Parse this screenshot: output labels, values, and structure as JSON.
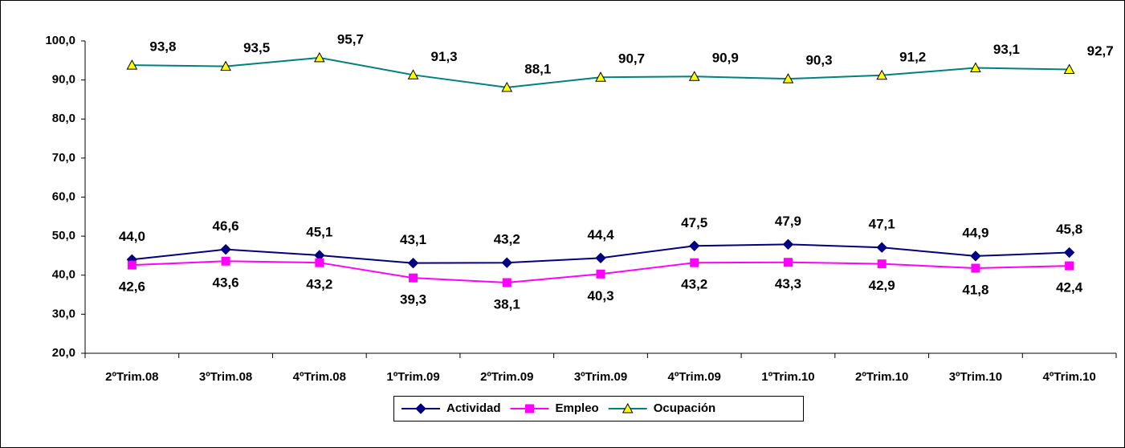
{
  "chart_data": {
    "type": "line",
    "categories": [
      "2ºTrim.08",
      "3ºTrim.08",
      "4ºTrim.08",
      "1ºTrim.09",
      "2ºTrim.09",
      "3ºTrim.09",
      "4ºTrim.09",
      "1ºTrim.10",
      "2ºTrim.10",
      "3ºTrim.10",
      "4ºTrim.10"
    ],
    "series": [
      {
        "name": "Actividad",
        "color": "#000080",
        "marker": "diamond",
        "values": [
          44.0,
          46.6,
          45.1,
          43.1,
          43.2,
          44.4,
          47.5,
          47.9,
          47.1,
          44.9,
          45.8
        ],
        "value_labels": [
          "44,0",
          "46,6",
          "45,1",
          "43,1",
          "43,2",
          "44,4",
          "47,5",
          "47,9",
          "47,1",
          "44,9",
          "45,8"
        ]
      },
      {
        "name": "Empleo",
        "color": "#ff00ff",
        "marker": "square",
        "values": [
          42.6,
          43.6,
          43.2,
          39.3,
          38.1,
          40.3,
          43.2,
          43.3,
          42.9,
          41.8,
          42.4
        ],
        "value_labels": [
          "42,6",
          "43,6",
          "43,2",
          "39,3",
          "38,1",
          "40,3",
          "43,2",
          "43,3",
          "42,9",
          "41,8",
          "42,4"
        ]
      },
      {
        "name": "Ocupación",
        "color": "#008080",
        "marker": "triangle",
        "values": [
          93.8,
          93.5,
          95.7,
          91.3,
          88.1,
          90.7,
          90.9,
          90.3,
          91.2,
          93.1,
          92.7
        ],
        "value_labels": [
          "93,8",
          "93,5",
          "95,7",
          "91,3",
          "88,1",
          "90,7",
          "90,9",
          "90,3",
          "91,2",
          "93,1",
          "92,7"
        ]
      }
    ],
    "ylim": [
      20,
      100
    ],
    "yticks": [
      {
        "value": 20,
        "label": "20,0"
      },
      {
        "value": 30,
        "label": "30,0"
      },
      {
        "value": 40,
        "label": "40,0"
      },
      {
        "value": 50,
        "label": "50,0"
      },
      {
        "value": 60,
        "label": "60,0"
      },
      {
        "value": 70,
        "label": "70,0"
      },
      {
        "value": 80,
        "label": "80,0"
      },
      {
        "value": 90,
        "label": "90,0"
      },
      {
        "value": 100,
        "label": "100,0"
      }
    ],
    "legend": "bottom"
  }
}
